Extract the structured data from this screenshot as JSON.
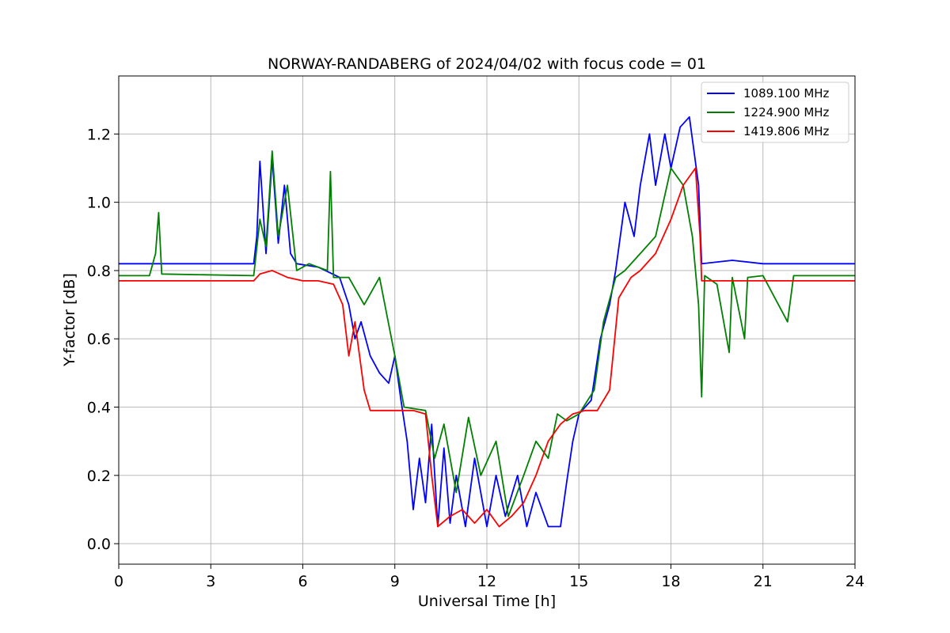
{
  "chart_data": {
    "type": "line",
    "title": "NORWAY-RANDABERG of 2024/04/02 with focus code = 01",
    "xlabel": "Universal Time [h]",
    "ylabel": "Y-factor [dB]",
    "xlim": [
      0,
      24
    ],
    "ylim": [
      -0.06,
      1.37
    ],
    "xticks": [
      0,
      3,
      6,
      9,
      12,
      15,
      18,
      21,
      24
    ],
    "xtick_labels": [
      "0",
      "3",
      "6",
      "9",
      "12",
      "15",
      "18",
      "21",
      "24"
    ],
    "yticks": [
      0.0,
      0.2,
      0.4,
      0.6,
      0.8,
      1.0,
      1.2
    ],
    "ytick_labels": [
      "0.0",
      "0.2",
      "0.4",
      "0.6",
      "0.8",
      "1.0",
      "1.2"
    ],
    "grid": true,
    "legend_position": "top-right",
    "series": [
      {
        "name": "1089.100 MHz",
        "color": "#0000ff",
        "points": [
          [
            0,
            0.82
          ],
          [
            4.4,
            0.82
          ],
          [
            4.5,
            0.9
          ],
          [
            4.6,
            1.12
          ],
          [
            4.8,
            0.85
          ],
          [
            5.0,
            1.13
          ],
          [
            5.2,
            0.88
          ],
          [
            5.4,
            1.05
          ],
          [
            5.6,
            0.85
          ],
          [
            5.8,
            0.82
          ],
          [
            6.5,
            0.81
          ],
          [
            7.2,
            0.78
          ],
          [
            7.5,
            0.7
          ],
          [
            7.7,
            0.6
          ],
          [
            7.9,
            0.65
          ],
          [
            8.2,
            0.55
          ],
          [
            8.5,
            0.5
          ],
          [
            8.8,
            0.47
          ],
          [
            9.0,
            0.55
          ],
          [
            9.2,
            0.42
          ],
          [
            9.4,
            0.3
          ],
          [
            9.6,
            0.1
          ],
          [
            9.8,
            0.25
          ],
          [
            10.0,
            0.12
          ],
          [
            10.2,
            0.35
          ],
          [
            10.4,
            0.05
          ],
          [
            10.6,
            0.28
          ],
          [
            10.8,
            0.06
          ],
          [
            11.0,
            0.2
          ],
          [
            11.3,
            0.05
          ],
          [
            11.6,
            0.25
          ],
          [
            12.0,
            0.05
          ],
          [
            12.3,
            0.2
          ],
          [
            12.6,
            0.08
          ],
          [
            13.0,
            0.2
          ],
          [
            13.3,
            0.05
          ],
          [
            13.6,
            0.15
          ],
          [
            14.0,
            0.05
          ],
          [
            14.4,
            0.05
          ],
          [
            14.6,
            0.18
          ],
          [
            14.8,
            0.3
          ],
          [
            15.0,
            0.38
          ],
          [
            15.4,
            0.42
          ],
          [
            15.7,
            0.6
          ],
          [
            16.0,
            0.7
          ],
          [
            16.2,
            0.8
          ],
          [
            16.5,
            1.0
          ],
          [
            16.8,
            0.9
          ],
          [
            17.0,
            1.05
          ],
          [
            17.3,
            1.2
          ],
          [
            17.5,
            1.05
          ],
          [
            17.8,
            1.2
          ],
          [
            18.0,
            1.1
          ],
          [
            18.3,
            1.22
          ],
          [
            18.6,
            1.25
          ],
          [
            18.9,
            1.05
          ],
          [
            19.0,
            0.82
          ],
          [
            20.0,
            0.83
          ],
          [
            21.0,
            0.82
          ],
          [
            24,
            0.82
          ]
        ]
      },
      {
        "name": "1224.900 MHz",
        "color": "#008000",
        "points": [
          [
            0,
            0.785
          ],
          [
            1.0,
            0.785
          ],
          [
            1.2,
            0.85
          ],
          [
            1.3,
            0.97
          ],
          [
            1.4,
            0.79
          ],
          [
            4.4,
            0.785
          ],
          [
            4.6,
            0.95
          ],
          [
            4.8,
            0.87
          ],
          [
            5.0,
            1.15
          ],
          [
            5.2,
            0.9
          ],
          [
            5.5,
            1.05
          ],
          [
            5.8,
            0.8
          ],
          [
            6.2,
            0.82
          ],
          [
            6.8,
            0.8
          ],
          [
            6.9,
            1.09
          ],
          [
            7.0,
            0.78
          ],
          [
            7.5,
            0.78
          ],
          [
            8.0,
            0.7
          ],
          [
            8.5,
            0.78
          ],
          [
            9.0,
            0.55
          ],
          [
            9.3,
            0.4
          ],
          [
            10.0,
            0.39
          ],
          [
            10.3,
            0.25
          ],
          [
            10.6,
            0.35
          ],
          [
            11.0,
            0.15
          ],
          [
            11.4,
            0.37
          ],
          [
            11.8,
            0.2
          ],
          [
            12.3,
            0.3
          ],
          [
            12.7,
            0.08
          ],
          [
            13.2,
            0.2
          ],
          [
            13.6,
            0.3
          ],
          [
            14.0,
            0.25
          ],
          [
            14.3,
            0.38
          ],
          [
            14.6,
            0.36
          ],
          [
            15.0,
            0.38
          ],
          [
            15.5,
            0.45
          ],
          [
            15.8,
            0.65
          ],
          [
            16.2,
            0.78
          ],
          [
            16.5,
            0.8
          ],
          [
            17.0,
            0.85
          ],
          [
            17.5,
            0.9
          ],
          [
            18.0,
            1.1
          ],
          [
            18.4,
            1.05
          ],
          [
            18.7,
            0.9
          ],
          [
            18.9,
            0.7
          ],
          [
            19.0,
            0.43
          ],
          [
            19.1,
            0.785
          ],
          [
            19.5,
            0.76
          ],
          [
            19.9,
            0.56
          ],
          [
            20.0,
            0.78
          ],
          [
            20.4,
            0.6
          ],
          [
            20.5,
            0.78
          ],
          [
            21.0,
            0.785
          ],
          [
            21.8,
            0.65
          ],
          [
            22.0,
            0.785
          ],
          [
            24,
            0.785
          ]
        ]
      },
      {
        "name": "1419.806 MHz",
        "color": "#ff0000",
        "points": [
          [
            0,
            0.77
          ],
          [
            4.4,
            0.77
          ],
          [
            4.6,
            0.79
          ],
          [
            5.0,
            0.8
          ],
          [
            5.5,
            0.78
          ],
          [
            6.0,
            0.77
          ],
          [
            6.5,
            0.77
          ],
          [
            7.0,
            0.76
          ],
          [
            7.3,
            0.7
          ],
          [
            7.5,
            0.55
          ],
          [
            7.7,
            0.65
          ],
          [
            8.0,
            0.45
          ],
          [
            8.2,
            0.39
          ],
          [
            9.0,
            0.39
          ],
          [
            9.6,
            0.39
          ],
          [
            10.0,
            0.38
          ],
          [
            10.2,
            0.2
          ],
          [
            10.4,
            0.05
          ],
          [
            10.8,
            0.08
          ],
          [
            11.2,
            0.1
          ],
          [
            11.6,
            0.06
          ],
          [
            12.0,
            0.1
          ],
          [
            12.4,
            0.05
          ],
          [
            12.8,
            0.08
          ],
          [
            13.2,
            0.12
          ],
          [
            13.6,
            0.2
          ],
          [
            14.0,
            0.3
          ],
          [
            14.4,
            0.35
          ],
          [
            14.8,
            0.38
          ],
          [
            15.2,
            0.39
          ],
          [
            15.6,
            0.39
          ],
          [
            16.0,
            0.45
          ],
          [
            16.3,
            0.72
          ],
          [
            16.7,
            0.78
          ],
          [
            17.0,
            0.8
          ],
          [
            17.5,
            0.85
          ],
          [
            18.0,
            0.95
          ],
          [
            18.4,
            1.05
          ],
          [
            18.8,
            1.1
          ],
          [
            18.95,
            0.9
          ],
          [
            19.0,
            0.77
          ],
          [
            24,
            0.77
          ]
        ]
      }
    ]
  }
}
